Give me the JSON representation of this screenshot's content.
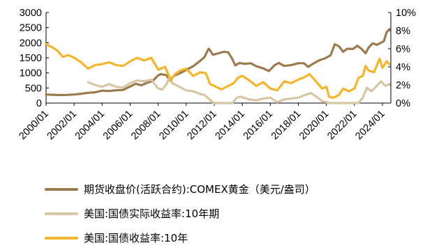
{
  "chart_data": {
    "type": "line",
    "left_axis": {
      "ylim": [
        0,
        3000
      ],
      "ticks": [
        0,
        500,
        1000,
        1500,
        2000,
        2500,
        3000
      ],
      "tick_labels": [
        "0",
        "500",
        "1000",
        "1500",
        "2000",
        "2500",
        "3000"
      ]
    },
    "right_axis": {
      "ylim": [
        0,
        10
      ],
      "ticks": [
        0,
        2,
        4,
        6,
        8,
        10
      ],
      "tick_labels": [
        "0%",
        "2%",
        "4%",
        "6%",
        "8%",
        "10%"
      ]
    },
    "x_range": [
      2000.0,
      2024.6
    ],
    "x_ticks": [
      2000,
      2002,
      2004,
      2006,
      2008,
      2010,
      2012,
      2014,
      2016,
      2018,
      2020,
      2022,
      2024
    ],
    "x_tick_labels": [
      "2000/01",
      "2002/01",
      "2004/01",
      "2006/01",
      "2008/01",
      "2010/01",
      "2012/01",
      "2014/01",
      "2016/01",
      "2018/01",
      "2020/01",
      "2022/01",
      "2024/01"
    ],
    "series": [
      {
        "name": "期货收盘价(活跃合约):COMEX黄金（美元/盎司）",
        "axis": "left",
        "color": "#9b7a4f",
        "x": [
          2000.0,
          2000.5,
          2001.0,
          2001.5,
          2002.0,
          2002.5,
          2003.0,
          2003.5,
          2004.0,
          2004.5,
          2005.0,
          2005.5,
          2006.0,
          2006.4,
          2006.8,
          2007.2,
          2007.6,
          2008.0,
          2008.2,
          2008.6,
          2008.8,
          2009.2,
          2009.6,
          2010.0,
          2010.5,
          2011.0,
          2011.3,
          2011.6,
          2011.7,
          2011.9,
          2012.3,
          2012.7,
          2013.0,
          2013.3,
          2013.5,
          2013.8,
          2014.2,
          2014.6,
          2015.0,
          2015.5,
          2015.9,
          2016.3,
          2016.6,
          2017.0,
          2017.5,
          2018.0,
          2018.4,
          2018.7,
          2019.0,
          2019.5,
          2019.9,
          2020.3,
          2020.6,
          2020.9,
          2021.2,
          2021.5,
          2021.9,
          2022.2,
          2022.5,
          2022.8,
          2023.0,
          2023.3,
          2023.6,
          2023.9,
          2024.1,
          2024.3,
          2024.5
        ],
        "values": [
          285,
          275,
          265,
          270,
          285,
          310,
          340,
          355,
          410,
          400,
          425,
          435,
          550,
          640,
          590,
          670,
          730,
          920,
          960,
          920,
          760,
          920,
          1000,
          1100,
          1220,
          1400,
          1520,
          1800,
          1750,
          1600,
          1650,
          1700,
          1680,
          1450,
          1250,
          1330,
          1300,
          1320,
          1220,
          1150,
          1060,
          1250,
          1330,
          1230,
          1260,
          1320,
          1320,
          1200,
          1290,
          1420,
          1480,
          1580,
          1950,
          1880,
          1700,
          1800,
          1790,
          1900,
          1800,
          1650,
          1830,
          1980,
          1930,
          2000,
          2050,
          2350,
          2450
        ]
      },
      {
        "name": "美国:国债实际收益率:10年期",
        "axis": "right",
        "color": "#d6c6a3",
        "x": [
          2003.0,
          2003.5,
          2004.0,
          2004.5,
          2005.0,
          2005.5,
          2006.0,
          2006.5,
          2007.0,
          2007.5,
          2008.0,
          2008.3,
          2008.6,
          2008.8,
          2009.0,
          2009.5,
          2010.0,
          2010.5,
          2011.0,
          2011.3,
          2011.6,
          2011.8,
          2012.0,
          2012.5,
          2013.0,
          2013.3,
          2013.6,
          2013.9,
          2014.5,
          2015.0,
          2015.5,
          2016.0,
          2016.5,
          2017.0,
          2017.5,
          2018.0,
          2018.5,
          2018.9,
          2019.3,
          2019.7,
          2020.0,
          2020.3,
          2020.6,
          2021.0,
          2021.5,
          2021.9,
          2022.3,
          2022.6,
          2022.9,
          2023.2,
          2023.6,
          2023.9,
          2024.2,
          2024.5
        ],
        "values": [
          2.3,
          2.0,
          1.8,
          2.1,
          1.8,
          1.7,
          2.2,
          2.5,
          2.4,
          2.6,
          1.6,
          1.5,
          2.1,
          2.9,
          2.2,
          1.8,
          1.4,
          1.3,
          1.0,
          0.9,
          0.5,
          0.2,
          -0.1,
          -0.5,
          -0.6,
          -0.2,
          0.6,
          0.7,
          0.4,
          0.3,
          0.5,
          0.6,
          0.1,
          0.4,
          0.5,
          0.6,
          0.9,
          1.1,
          0.7,
          0.2,
          0.1,
          -0.1,
          -0.9,
          -1.0,
          -1.1,
          -1.0,
          -0.5,
          0.6,
          1.7,
          1.3,
          1.9,
          2.4,
          1.9,
          2.1
        ]
      },
      {
        "name": "美国:国债收益率:10年",
        "axis": "right",
        "color": "#f2b52d",
        "x": [
          2000.0,
          2000.4,
          2000.8,
          2001.2,
          2001.6,
          2002.0,
          2002.5,
          2003.0,
          2003.5,
          2004.0,
          2004.5,
          2005.0,
          2005.5,
          2006.0,
          2006.5,
          2007.0,
          2007.5,
          2008.0,
          2008.5,
          2008.9,
          2009.2,
          2009.6,
          2010.0,
          2010.5,
          2011.0,
          2011.4,
          2011.7,
          2012.0,
          2012.5,
          2013.0,
          2013.4,
          2013.7,
          2014.0,
          2014.5,
          2015.0,
          2015.5,
          2016.0,
          2016.5,
          2017.0,
          2017.5,
          2018.0,
          2018.5,
          2018.8,
          2019.2,
          2019.7,
          2020.0,
          2020.2,
          2020.5,
          2020.9,
          2021.2,
          2021.6,
          2022.0,
          2022.3,
          2022.6,
          2022.8,
          2023.0,
          2023.4,
          2023.8,
          2024.0,
          2024.3,
          2024.5
        ],
        "values": [
          6.5,
          6.2,
          5.8,
          5.1,
          5.3,
          5.0,
          4.5,
          3.8,
          4.2,
          4.3,
          4.5,
          4.2,
          4.1,
          4.6,
          5.0,
          4.7,
          5.0,
          3.7,
          4.0,
          2.5,
          3.2,
          3.6,
          3.8,
          3.0,
          3.4,
          3.3,
          2.1,
          1.9,
          1.5,
          1.9,
          2.2,
          2.8,
          3.0,
          2.5,
          1.9,
          2.3,
          1.6,
          1.4,
          2.4,
          2.2,
          2.6,
          2.9,
          3.2,
          2.5,
          1.6,
          1.8,
          0.7,
          0.6,
          0.9,
          1.6,
          1.3,
          1.6,
          2.8,
          3.0,
          4.1,
          3.6,
          3.4,
          4.9,
          3.9,
          4.6,
          4.3
        ]
      }
    ]
  }
}
